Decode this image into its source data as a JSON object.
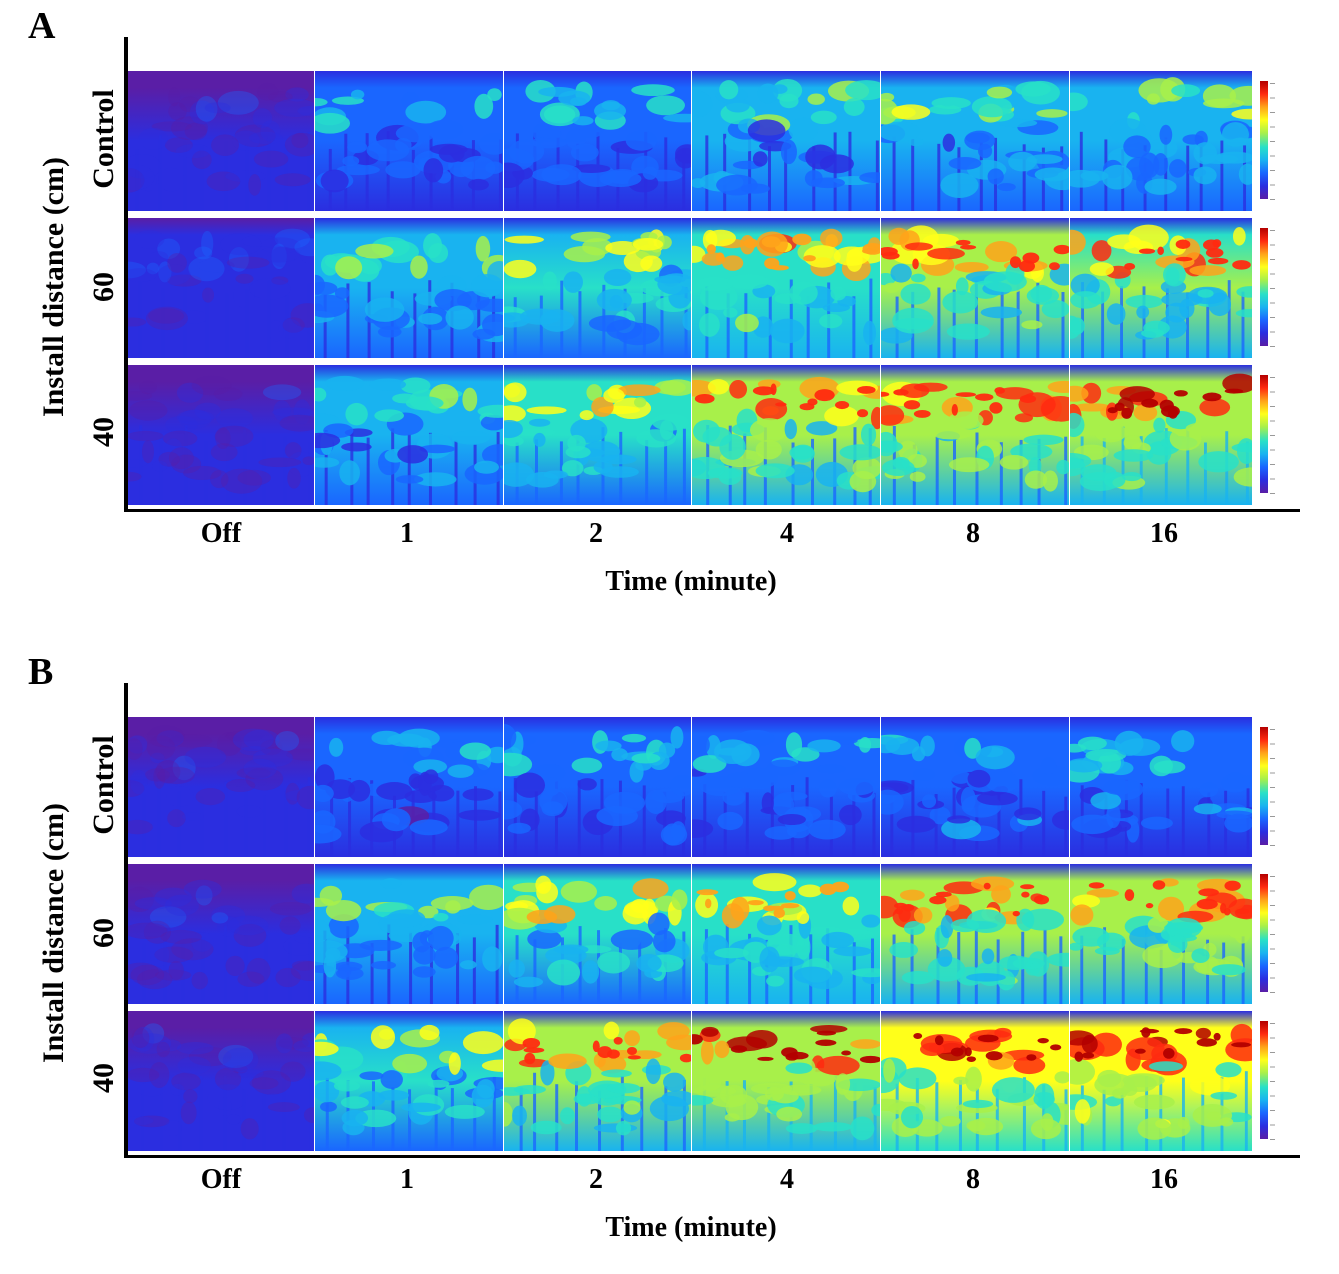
{
  "panels": [
    {
      "letter": "A",
      "y_title": "Install distance (cm)",
      "row_labels": [
        "Control",
        "60",
        "40"
      ],
      "col_labels": [
        "Off",
        "1",
        "2",
        "4",
        "8",
        "16"
      ],
      "x_title": "Time (minute)",
      "heat_levels": [
        [
          0.05,
          0.3,
          0.33,
          0.4,
          0.44,
          0.47
        ],
        [
          0.1,
          0.45,
          0.55,
          0.68,
          0.72,
          0.7
        ],
        [
          0.02,
          0.4,
          0.6,
          0.72,
          0.78,
          0.82
        ]
      ]
    },
    {
      "letter": "B",
      "y_title": "Install distance (cm)",
      "row_labels": [
        "Control",
        "60",
        "40"
      ],
      "col_labels": [
        "Off",
        "1",
        "2",
        "4",
        "8",
        "16"
      ],
      "x_title": "Time (minute)",
      "heat_levels": [
        [
          0.03,
          0.25,
          0.28,
          0.3,
          0.32,
          0.33
        ],
        [
          0.05,
          0.45,
          0.6,
          0.68,
          0.75,
          0.78
        ],
        [
          0.06,
          0.55,
          0.72,
          0.85,
          0.88,
          0.9
        ]
      ]
    }
  ],
  "colors": {
    "palette": [
      "#5a1ea6",
      "#2b2ee0",
      "#1a66ff",
      "#19b3f0",
      "#28e0c8",
      "#a8f04a",
      "#ffff1a",
      "#ffa31a",
      "#ff2a10",
      "#b30000"
    ]
  }
}
